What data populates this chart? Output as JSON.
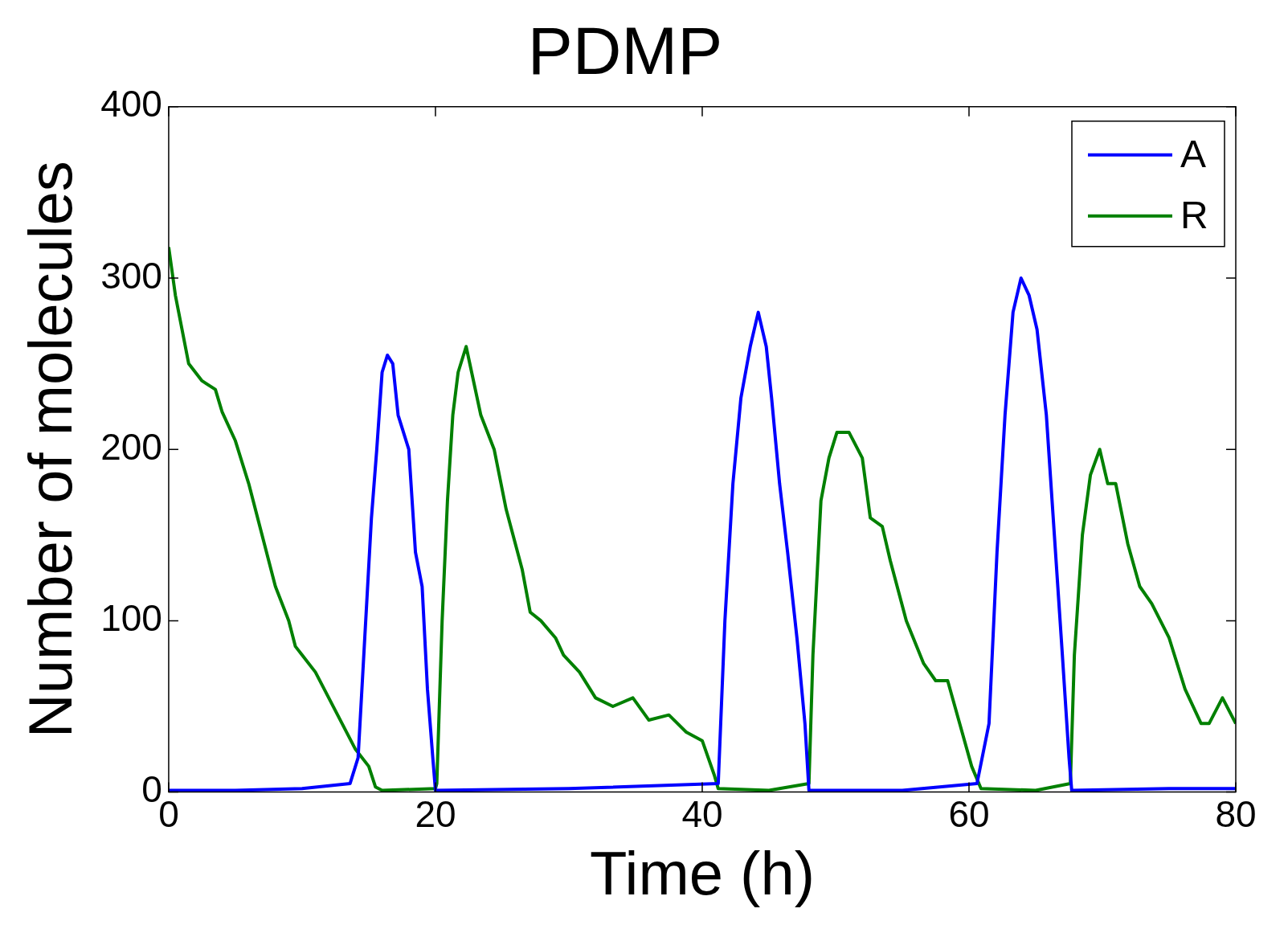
{
  "chart_data": {
    "type": "line",
    "title": "PDMP",
    "xlabel": "Time (h)",
    "ylabel": "Number of molecules",
    "xlim": [
      0,
      80
    ],
    "ylim": [
      0,
      400
    ],
    "xticks": [
      0,
      20,
      40,
      60,
      80
    ],
    "yticks": [
      0,
      100,
      200,
      300,
      400
    ],
    "grid": false,
    "legend": "top right",
    "marker": "none",
    "line_style": "solid",
    "series": [
      {
        "name": "A",
        "color": "#0000ff",
        "x": [
          0,
          5,
          10,
          13.6,
          14.2,
          14.7,
          15.2,
          15.6,
          16,
          16.4,
          16.8,
          17.2,
          17.6,
          18,
          18.5,
          19,
          19.4,
          19.8,
          20,
          30,
          41.2,
          41.7,
          42.3,
          42.9,
          43.6,
          44.2,
          44.8,
          45.2,
          45.8,
          46.4,
          47.1,
          47.7,
          48,
          55,
          60.6,
          61.5,
          62.1,
          62.7,
          63.3,
          63.9,
          64.5,
          65.1,
          65.8,
          66.4,
          67,
          67.5,
          67.7,
          75,
          80
        ],
        "values": [
          1,
          1,
          2,
          5,
          20,
          90,
          160,
          200,
          245,
          255,
          250,
          220,
          210,
          200,
          140,
          120,
          60,
          20,
          1,
          2,
          5,
          100,
          180,
          230,
          260,
          280,
          260,
          230,
          180,
          140,
          90,
          40,
          1,
          1,
          5,
          40,
          140,
          220,
          280,
          300,
          290,
          270,
          220,
          150,
          80,
          20,
          1,
          2,
          2
        ]
      },
      {
        "name": "R",
        "color": "#008000",
        "x": [
          0,
          0.5,
          1.5,
          2.5,
          3.5,
          4,
          5,
          6,
          7,
          8,
          9,
          9.5,
          10,
          11,
          12,
          13,
          14,
          15,
          15.5,
          16,
          20,
          20.1,
          20.5,
          20.9,
          21.3,
          21.7,
          22.3,
          23.4,
          24.4,
          25.3,
          26.5,
          27.1,
          27.9,
          29,
          29.6,
          30.8,
          32,
          33.3,
          34.8,
          36,
          37.5,
          38.8,
          40,
          40.9,
          41.2,
          45,
          48,
          48.3,
          48.9,
          49.5,
          50.1,
          51,
          52,
          52.6,
          53.5,
          54.1,
          55.3,
          56.6,
          57.5,
          58.4,
          59.3,
          60.2,
          60.9,
          65,
          67.6,
          67.9,
          68.5,
          69.1,
          69.8,
          70.4,
          71,
          71.9,
          72.8,
          73.7,
          75,
          76.2,
          77.4,
          78,
          79,
          80
        ],
        "values": [
          318,
          290,
          250,
          240,
          235,
          222,
          205,
          180,
          150,
          120,
          100,
          85,
          80,
          70,
          55,
          40,
          25,
          15,
          3,
          1,
          2,
          5,
          100,
          170,
          220,
          245,
          260,
          220,
          200,
          165,
          130,
          105,
          100,
          90,
          80,
          70,
          55,
          50,
          55,
          42,
          45,
          35,
          30,
          10,
          2,
          1,
          5,
          80,
          170,
          195,
          210,
          210,
          195,
          160,
          155,
          135,
          100,
          75,
          65,
          65,
          40,
          15,
          2,
          1,
          5,
          80,
          150,
          185,
          200,
          180,
          180,
          145,
          120,
          110,
          90,
          60,
          40,
          40,
          55,
          40
        ]
      }
    ]
  }
}
